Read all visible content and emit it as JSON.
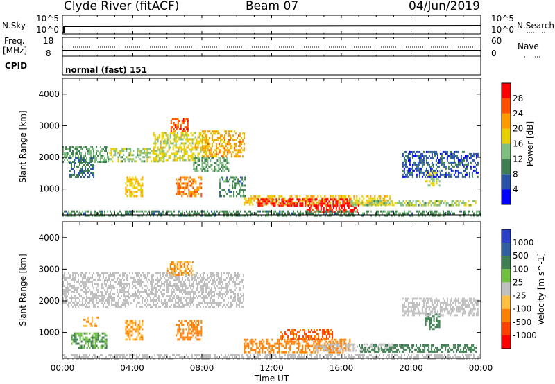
{
  "header": {
    "station": "Clyde River (fitACF)",
    "beam": "Beam 07",
    "date": "04/Jun/2019"
  },
  "param_panels": {
    "nsky_label": "N.Sky",
    "nsky_ticks": [
      "10^5",
      "10^0"
    ],
    "nsearch_label": "N.Search",
    "nsearch_ticks": [
      "10^5",
      "10^0"
    ],
    "freq_label_1": "Freq.",
    "freq_label_2": "[MHz]",
    "freq_ticks": [
      "18",
      "8"
    ],
    "nave_label": "Nave",
    "nave_ticks": [
      "60",
      "0"
    ],
    "cpid_label": "CPID",
    "cpid_value": "normal (fast) 151"
  },
  "colors": {
    "power_scale": [
      "#0000ff",
      "#2a53a8",
      "#3f7f52",
      "#7fbf7f",
      "#e8d000",
      "#ff9a00",
      "#ff5000",
      "#ff0000"
    ],
    "velocity_scale": [
      "#2a40c8",
      "#3060a0",
      "#3f7f52",
      "#70c040",
      "#c0c0c0",
      "#ffbf40",
      "#ff8000",
      "#ff4000",
      "#ff0000"
    ],
    "ground_scatter": "#bfbfbf"
  },
  "chart_data": [
    {
      "type": "heatmap",
      "name": "power",
      "ylabel": "Slant Range [km]",
      "y_ticks": [
        "1000",
        "2000",
        "3000",
        "4000"
      ],
      "ylim": [
        180,
        4500
      ],
      "colorbar_label": "Power [dB]",
      "colorbar_ticks": [
        "4",
        "8",
        "12",
        "16",
        "20",
        "24",
        "28"
      ],
      "colorbar_range": [
        0,
        30
      ],
      "x_ticks": [
        "00:00",
        "04:00",
        "08:00",
        "12:00",
        "16:00",
        "20:00",
        "00:00"
      ],
      "xlim_hours": [
        0,
        24
      ],
      "regions": [
        {
          "t": [
            0.0,
            2.6
          ],
          "r": [
            1850,
            2350
          ],
          "value": 12
        },
        {
          "t": [
            2.6,
            5.8
          ],
          "r": [
            1900,
            2300
          ],
          "value": 14
        },
        {
          "t": [
            5.2,
            8.3
          ],
          "r": [
            1900,
            2800
          ],
          "value": 16
        },
        {
          "t": [
            6.2,
            7.2
          ],
          "r": [
            2850,
            3250
          ],
          "value": 24
        },
        {
          "t": [
            8.0,
            10.4
          ],
          "r": [
            2000,
            2850
          ],
          "value": 20
        },
        {
          "t": [
            7.5,
            9.5
          ],
          "r": [
            1550,
            2000
          ],
          "value": 12
        },
        {
          "t": [
            3.6,
            4.6
          ],
          "r": [
            800,
            1400
          ],
          "value": 18
        },
        {
          "t": [
            6.5,
            8.0
          ],
          "r": [
            800,
            1400
          ],
          "value": 22
        },
        {
          "t": [
            0.4,
            1.8
          ],
          "r": [
            1400,
            2000
          ],
          "value": 8
        },
        {
          "t": [
            9.0,
            10.5
          ],
          "r": [
            800,
            1400
          ],
          "value": 10
        },
        {
          "t": [
            10.4,
            18.8
          ],
          "r": [
            480,
            800
          ],
          "value": 18
        },
        {
          "t": [
            11.2,
            16.5
          ],
          "r": [
            480,
            700
          ],
          "value": 28
        },
        {
          "t": [
            14.0,
            17.0
          ],
          "r": [
            300,
            500
          ],
          "value": 28
        },
        {
          "t": [
            16.5,
            23.7
          ],
          "r": [
            460,
            650
          ],
          "value": 14
        },
        {
          "t": [
            20.8,
            21.6
          ],
          "r": [
            1100,
            1600
          ],
          "value": 16
        },
        {
          "t": [
            19.5,
            23.8
          ],
          "r": [
            1400,
            2200
          ],
          "value": 6
        },
        {
          "t": [
            0.0,
            24.0
          ],
          "r": [
            180,
            320
          ],
          "value": 10
        }
      ]
    },
    {
      "type": "heatmap",
      "name": "velocity",
      "ylabel": "Slant Range [km]",
      "y_ticks": [
        "1000",
        "2000",
        "3000",
        "4000"
      ],
      "ylim": [
        180,
        4500
      ],
      "colorbar_label": "Velocity [m s^-1]",
      "colorbar_ticks": [
        "1000",
        "500",
        "100",
        "25",
        "-25",
        "-100",
        "-500",
        "-1000"
      ],
      "x_ticks": [
        "00:00",
        "04:00",
        "08:00",
        "12:00",
        "16:00",
        "20:00",
        "00:00"
      ],
      "xlabel": "Time UT",
      "xlim_hours": [
        0,
        24
      ],
      "regions": [
        {
          "t": [
            0.0,
            10.4
          ],
          "r": [
            1800,
            2900
          ],
          "value": 0
        },
        {
          "t": [
            6.0,
            7.5
          ],
          "r": [
            2850,
            3250
          ],
          "value": -100
        },
        {
          "t": [
            3.6,
            4.6
          ],
          "r": [
            800,
            1400
          ],
          "value": -100
        },
        {
          "t": [
            6.5,
            8.0
          ],
          "r": [
            800,
            1400
          ],
          "value": -300
        },
        {
          "t": [
            1.2,
            2.0
          ],
          "r": [
            1200,
            1500
          ],
          "value": -100
        },
        {
          "t": [
            0.5,
            2.5
          ],
          "r": [
            500,
            1000
          ],
          "value": 100
        },
        {
          "t": [
            10.4,
            16.5
          ],
          "r": [
            380,
            800
          ],
          "value": -300
        },
        {
          "t": [
            12.5,
            15.5
          ],
          "r": [
            800,
            1100
          ],
          "value": -500
        },
        {
          "t": [
            14.5,
            19.0
          ],
          "r": [
            400,
            650
          ],
          "value": 0
        },
        {
          "t": [
            17.0,
            23.7
          ],
          "r": [
            380,
            620
          ],
          "value": 300
        },
        {
          "t": [
            20.8,
            21.6
          ],
          "r": [
            1100,
            1600
          ],
          "value": 300
        },
        {
          "t": [
            19.5,
            23.8
          ],
          "r": [
            1550,
            2100
          ],
          "value": 0
        },
        {
          "t": [
            0.0,
            24.0
          ],
          "r": [
            180,
            320
          ],
          "value": 0
        }
      ]
    }
  ]
}
